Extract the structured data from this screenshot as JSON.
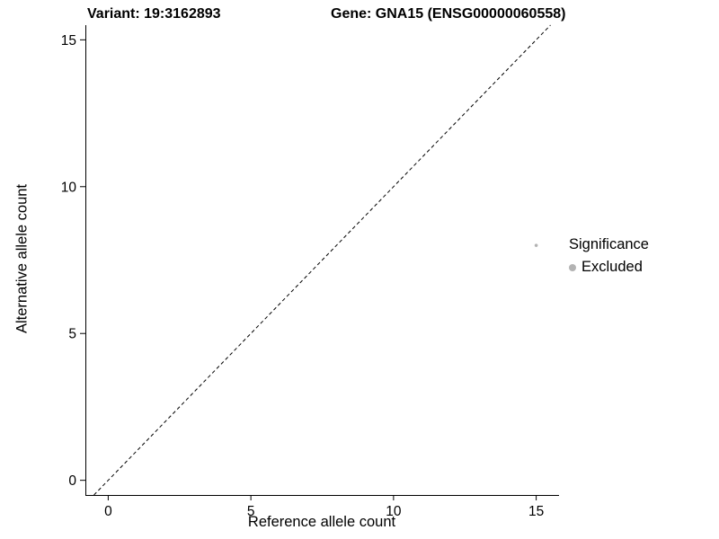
{
  "header": {
    "variant_title": "Variant: 19:3162893",
    "gene_title": "Gene: GNA15 (ENSG00000060558)"
  },
  "chart_data": {
    "type": "scatter",
    "title_left": "Variant: 19:3162893",
    "title_right": "Gene: GNA15 (ENSG00000060558)",
    "xlabel": "Reference allele count",
    "ylabel": "Alternative allele count",
    "xlim": [
      -0.8,
      15.8
    ],
    "ylim": [
      -0.5,
      15.5
    ],
    "xticks": [
      0,
      5,
      10,
      15
    ],
    "yticks": [
      0,
      5,
      10,
      15
    ],
    "grid": false,
    "reference_line": {
      "type": "identity",
      "equation": "y = x",
      "style": "dashed",
      "color": "#000000"
    },
    "series": [
      {
        "name": "Excluded",
        "color": "#b3b3b3",
        "points": [
          {
            "x": 15,
            "y": 8
          }
        ]
      }
    ],
    "legend": {
      "title": "Significance",
      "position": "right",
      "entries": [
        {
          "label": "Excluded",
          "color": "#b3b3b3"
        }
      ]
    }
  }
}
